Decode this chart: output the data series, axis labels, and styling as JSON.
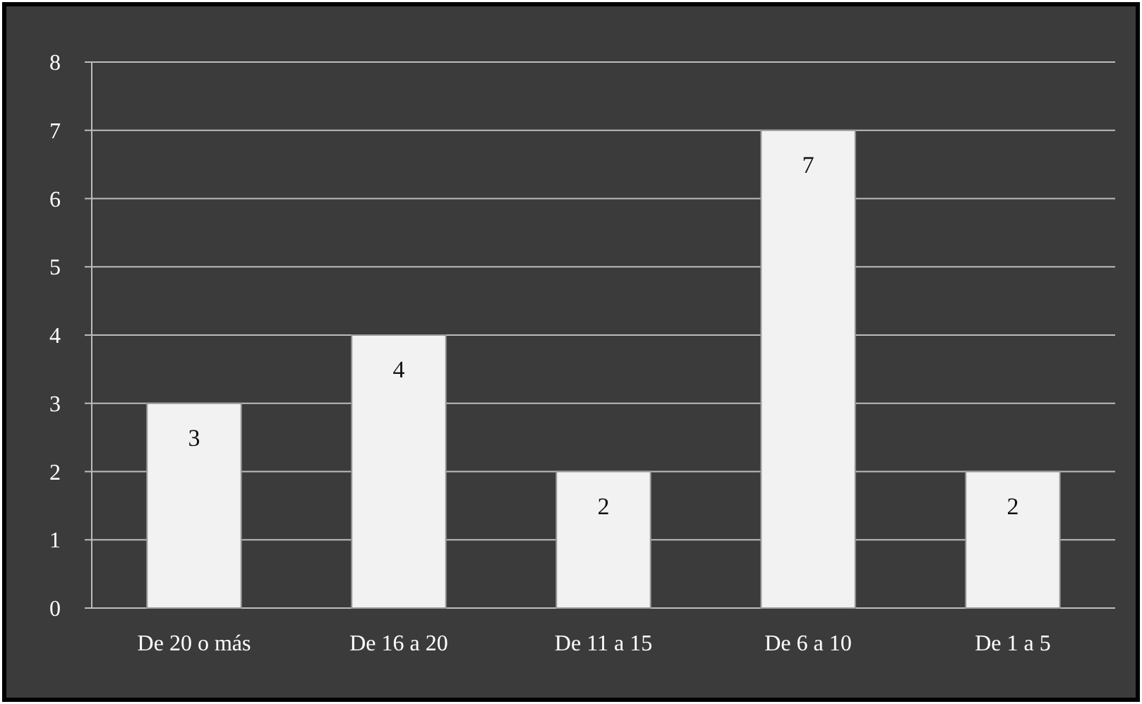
{
  "chart_data": {
    "type": "bar",
    "categories": [
      "De 20 o más",
      "De 16 a 20",
      "De 11 a 15",
      "De 6 a 10",
      "De 1 a 5"
    ],
    "values": [
      3,
      4,
      2,
      7,
      2
    ],
    "color": "#f2f2f2",
    "ylim": [
      0,
      8
    ],
    "yticks": [
      0,
      1,
      2,
      3,
      4,
      5,
      6,
      7,
      8
    ],
    "grid": "y",
    "data_labels": true
  }
}
